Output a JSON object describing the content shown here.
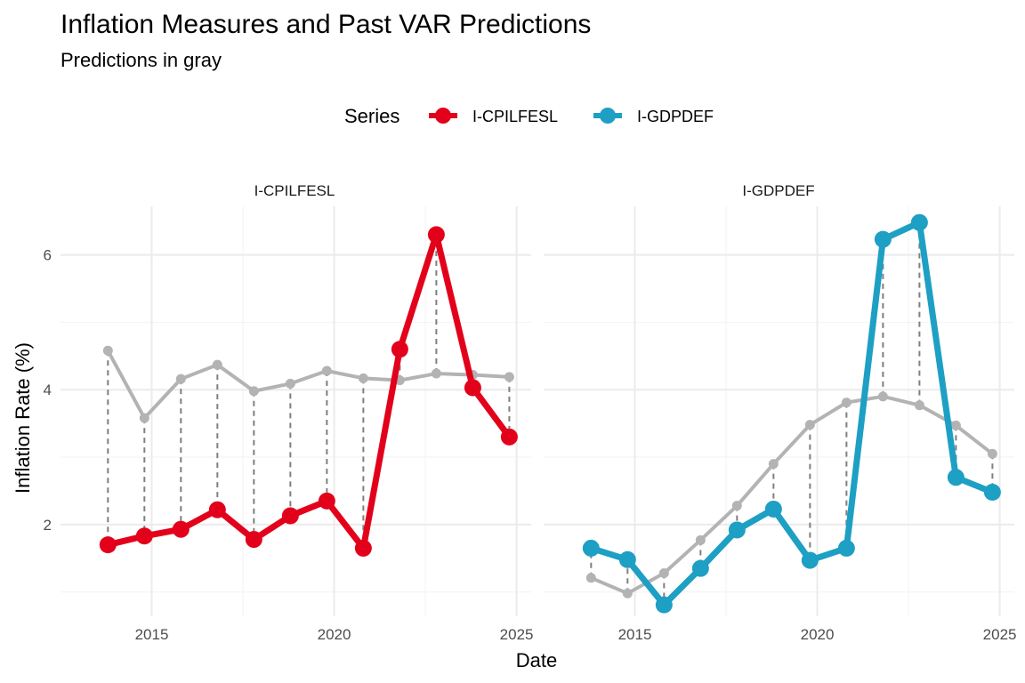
{
  "title": "Inflation Measures and Past VAR Predictions",
  "subtitle": "Predictions in gray",
  "legend": {
    "title": "Series",
    "items": [
      {
        "label": "I-CPILFESL",
        "color": "#e3001b"
      },
      {
        "label": "I-GDPDEF",
        "color": "#1e9fc4"
      }
    ]
  },
  "axes": {
    "xlabel": "Date",
    "ylabel": "Inflation Rate (%)",
    "x_ticks": [
      "2015",
      "2020",
      "2025"
    ],
    "y_ticks": [
      "2",
      "4",
      "6"
    ]
  },
  "chart_data": [
    {
      "type": "line",
      "panel": "I-CPILFESL",
      "color": "#e3001b",
      "prediction_color": "#b3b3b3",
      "x": [
        2013.8,
        2014.8,
        2015.8,
        2016.8,
        2017.8,
        2018.8,
        2019.8,
        2020.8,
        2021.8,
        2022.8,
        2023.8,
        2024.8
      ],
      "actual": [
        1.7,
        1.83,
        1.93,
        2.22,
        1.78,
        2.13,
        2.35,
        1.65,
        4.6,
        6.3,
        4.03,
        3.3
      ],
      "predicted": [
        4.58,
        3.58,
        4.16,
        4.37,
        3.98,
        4.09,
        4.28,
        4.17,
        4.14,
        4.24,
        4.22,
        4.19
      ],
      "xlim": [
        2012.5,
        2025.4
      ],
      "ylim": [
        0.64,
        6.72
      ],
      "grid": true
    },
    {
      "type": "line",
      "panel": "I-GDPDEF",
      "color": "#1e9fc4",
      "prediction_color": "#b3b3b3",
      "x": [
        2013.8,
        2014.8,
        2015.8,
        2016.8,
        2017.8,
        2018.8,
        2019.8,
        2020.8,
        2021.8,
        2022.8,
        2023.8,
        2024.8
      ],
      "actual": [
        1.65,
        1.48,
        0.81,
        1.35,
        1.92,
        2.23,
        1.47,
        1.65,
        6.23,
        6.48,
        2.7,
        2.48
      ],
      "predicted": [
        1.21,
        0.98,
        1.28,
        1.77,
        2.28,
        2.9,
        3.48,
        3.81,
        3.9,
        3.77,
        3.47,
        3.05
      ],
      "xlim": [
        2012.5,
        2025.4
      ],
      "ylim": [
        0.64,
        6.72
      ],
      "grid": true
    }
  ]
}
